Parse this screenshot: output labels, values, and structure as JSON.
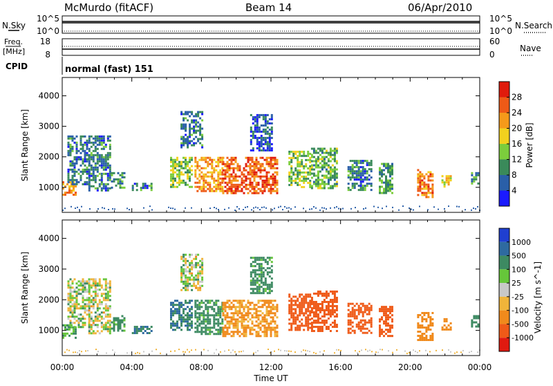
{
  "header": {
    "station": "McMurdo (fitACF)",
    "beam": "Beam 14",
    "date": "06/Apr/2010"
  },
  "strip_sky": {
    "left_label": "N.Sky",
    "left_ticks": [
      "10^5",
      "10^0"
    ],
    "right_label": "N.Search",
    "right_ticks": [
      "10^5",
      "10^0"
    ]
  },
  "strip_freq": {
    "left_label_1": "Freq.",
    "left_label_2": "[MHz]",
    "left_ticks": [
      "18",
      "8"
    ],
    "right_label": "Nave",
    "right_ticks": [
      "60",
      "0"
    ]
  },
  "cpid": {
    "label": "CPID",
    "value": "normal (fast) 151"
  },
  "colors": {
    "power_scale": [
      "#1a1aff",
      "#2a5fa8",
      "#3a8a5a",
      "#7ccd3c",
      "#f2d11e",
      "#f59a1a",
      "#ee5a17",
      "#e01b0c"
    ],
    "velocity_scale": [
      "#1f3fd0",
      "#2e6aa0",
      "#3d8a62",
      "#66c63a",
      "#c8c8c8",
      "#f0b43a",
      "#f08a1c",
      "#ef5a18",
      "#e01a10"
    ]
  },
  "chart_data": [
    {
      "type": "heatmap",
      "name": "power",
      "xlabel": "",
      "ylabel": "Slant Range [km]",
      "x_ticks": [
        "00:00",
        "04:00",
        "08:00",
        "12:00",
        "16:00",
        "20:00",
        "00:00"
      ],
      "xlim_hours": [
        0,
        24
      ],
      "y_ticks": [
        "1000",
        "2000",
        "3000",
        "4000"
      ],
      "ylim_km": [
        180,
        4600
      ],
      "colorbar": {
        "label": "Power [dB]",
        "ticks": [
          "4",
          "8",
          "12",
          "16",
          "20",
          "24",
          "28"
        ],
        "range": [
          0,
          32
        ]
      },
      "echo_regions": [
        {
          "t": [
            0.0,
            0.8
          ],
          "r": [
            750,
            1200
          ],
          "value": 22
        },
        {
          "t": [
            0.3,
            1.6
          ],
          "r": [
            1100,
            2700
          ],
          "value": 8
        },
        {
          "t": [
            1.5,
            2.8
          ],
          "r": [
            900,
            2700
          ],
          "value": 8
        },
        {
          "t": [
            2.8,
            3.6
          ],
          "r": [
            1000,
            1500
          ],
          "value": 10
        },
        {
          "t": [
            4.0,
            5.1
          ],
          "r": [
            900,
            1150
          ],
          "value": 8
        },
        {
          "t": [
            6.2,
            7.4
          ],
          "r": [
            1000,
            2000
          ],
          "value": 14
        },
        {
          "t": [
            6.8,
            8.0
          ],
          "r": [
            2300,
            3500
          ],
          "value": 8
        },
        {
          "t": [
            7.6,
            9.2
          ],
          "r": [
            900,
            2000
          ],
          "value": 22
        },
        {
          "t": [
            9.2,
            12.3
          ],
          "r": [
            800,
            2000
          ],
          "value": 26
        },
        {
          "t": [
            10.8,
            12.0
          ],
          "r": [
            2200,
            3400
          ],
          "value": 6
        },
        {
          "t": [
            13.0,
            14.3
          ],
          "r": [
            1000,
            2200
          ],
          "value": 14
        },
        {
          "t": [
            14.3,
            15.8
          ],
          "r": [
            1000,
            2300
          ],
          "value": 12
        },
        {
          "t": [
            16.4,
            17.8
          ],
          "r": [
            900,
            1900
          ],
          "value": 8
        },
        {
          "t": [
            18.2,
            19.0
          ],
          "r": [
            800,
            1800
          ],
          "value": 10
        },
        {
          "t": [
            20.4,
            21.3
          ],
          "r": [
            700,
            1600
          ],
          "value": 24
        },
        {
          "t": [
            21.8,
            22.3
          ],
          "r": [
            1000,
            1400
          ],
          "value": 18
        },
        {
          "t": [
            23.5,
            23.9
          ],
          "r": [
            1100,
            1500
          ],
          "value": 10
        }
      ]
    },
    {
      "type": "heatmap",
      "name": "velocity",
      "xlabel": "Time UT",
      "ylabel": "Slant Range [km]",
      "x_ticks": [
        "00:00",
        "04:00",
        "08:00",
        "12:00",
        "16:00",
        "20:00",
        "00:00"
      ],
      "xlim_hours": [
        0,
        24
      ],
      "y_ticks": [
        "1000",
        "2000",
        "3000",
        "4000"
      ],
      "ylim_km": [
        180,
        4600
      ],
      "colorbar": {
        "label": "Velocity [m s^-1]",
        "ticks": [
          "1000",
          "500",
          "100",
          "25",
          "-25",
          "-100",
          "-500",
          "-1000"
        ],
        "range": [
          -1200,
          1200
        ]
      },
      "echo_regions": [
        {
          "t": [
            0.0,
            0.8
          ],
          "r": [
            750,
            1200
          ],
          "value": 150
        },
        {
          "t": [
            0.3,
            1.6
          ],
          "r": [
            1100,
            2700
          ],
          "value": 20
        },
        {
          "t": [
            1.5,
            2.8
          ],
          "r": [
            900,
            2700
          ],
          "value": 10
        },
        {
          "t": [
            2.8,
            3.6
          ],
          "r": [
            1000,
            1500
          ],
          "value": 150
        },
        {
          "t": [
            4.0,
            5.1
          ],
          "r": [
            900,
            1150
          ],
          "value": 500
        },
        {
          "t": [
            6.2,
            7.4
          ],
          "r": [
            1000,
            2000
          ],
          "value": 500
        },
        {
          "t": [
            6.8,
            8.0
          ],
          "r": [
            2300,
            3500
          ],
          "value": 10
        },
        {
          "t": [
            7.6,
            9.2
          ],
          "r": [
            900,
            2000
          ],
          "value": 200
        },
        {
          "t": [
            9.2,
            12.3
          ],
          "r": [
            800,
            2000
          ],
          "value": -150
        },
        {
          "t": [
            10.8,
            12.0
          ],
          "r": [
            2200,
            3400
          ],
          "value": 200
        },
        {
          "t": [
            13.0,
            14.3
          ],
          "r": [
            1000,
            2200
          ],
          "value": -700
        },
        {
          "t": [
            14.3,
            15.8
          ],
          "r": [
            1000,
            2300
          ],
          "value": -700
        },
        {
          "t": [
            16.4,
            17.8
          ],
          "r": [
            900,
            1900
          ],
          "value": -700
        },
        {
          "t": [
            18.2,
            19.0
          ],
          "r": [
            800,
            1800
          ],
          "value": -700
        },
        {
          "t": [
            20.4,
            21.3
          ],
          "r": [
            700,
            1600
          ],
          "value": -300
        },
        {
          "t": [
            21.8,
            22.3
          ],
          "r": [
            1000,
            1400
          ],
          "value": -300
        },
        {
          "t": [
            23.5,
            23.9
          ],
          "r": [
            1100,
            1500
          ],
          "value": 300
        }
      ]
    }
  ]
}
